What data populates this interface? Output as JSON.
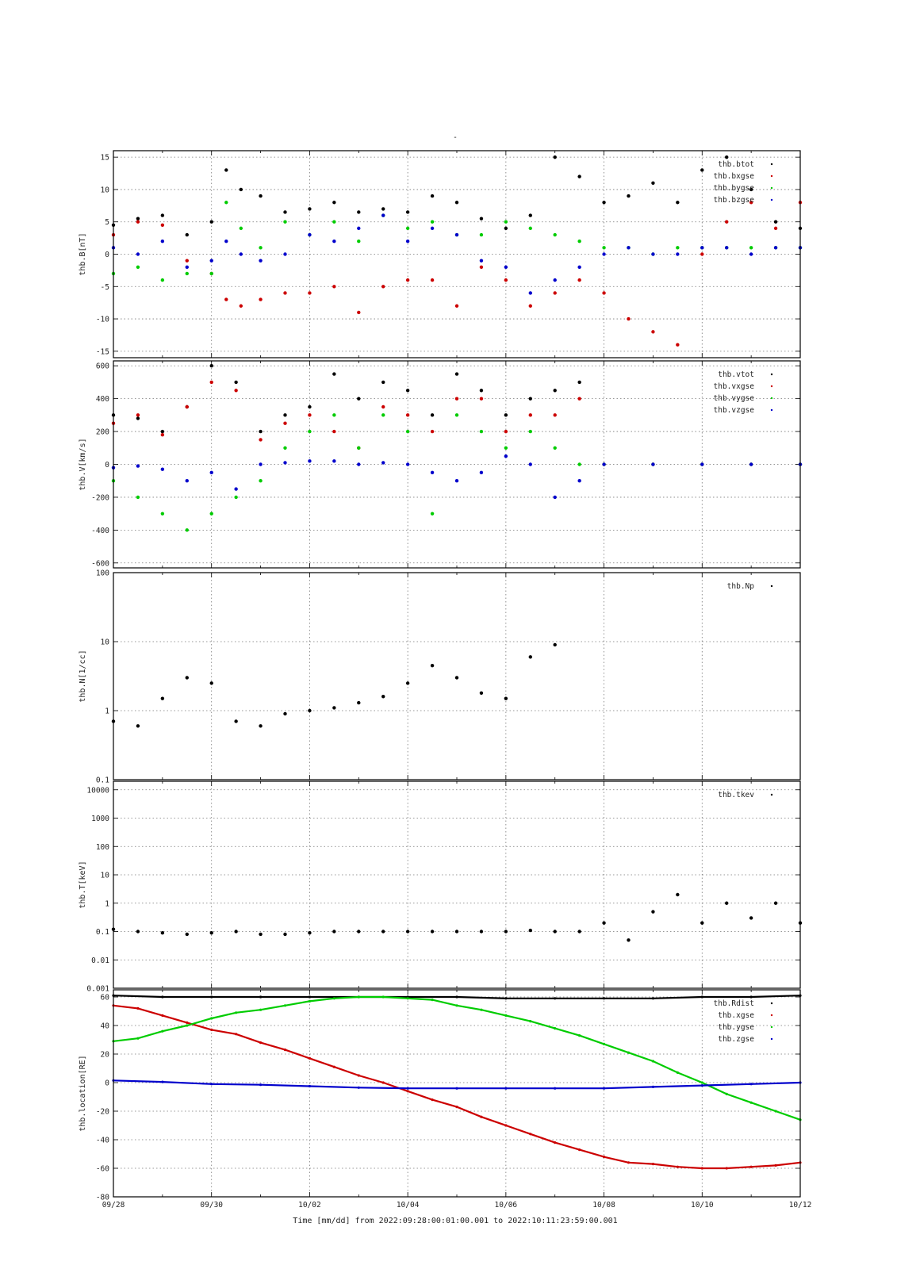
{
  "page": {
    "mark": "-"
  },
  "x_axis": {
    "ticks": [
      "09/28",
      "09/30",
      "10/02",
      "10/04",
      "10/06",
      "10/08",
      "10/10",
      "10/12"
    ],
    "range_days": [
      0,
      14
    ],
    "label": "Time [mm/dd]  from 2022:09:28:00:01:00.001  to  2022:10:11:23:59:00.001"
  },
  "colors": {
    "black": "#000000",
    "red": "#cc0000",
    "green": "#00cc00",
    "blue": "#0000cc"
  },
  "chart_data": [
    {
      "type": "scatter",
      "ylabel": "thb.B[nT]",
      "ylim": [
        -16,
        16
      ],
      "scale": "linear",
      "yticks": [
        {
          "v": 15,
          "t": "15"
        },
        {
          "v": 10,
          "t": "10"
        },
        {
          "v": 5,
          "t": "5"
        },
        {
          "v": 0,
          "t": "0"
        },
        {
          "v": -5,
          "t": "-5"
        },
        {
          "v": -10,
          "t": "-10"
        },
        {
          "v": -15,
          "t": "-15"
        }
      ],
      "legend": [
        "thb.btot",
        "thb.bxgse",
        "thb.bygse",
        "thb.bzgse"
      ],
      "grid": true,
      "series": [
        {
          "name": "thb.btot",
          "color": "#000000",
          "x": [
            0,
            0.5,
            1,
            1.5,
            2,
            2.3,
            2.6,
            3,
            3.5,
            4,
            4.5,
            5,
            5.5,
            6,
            6.5,
            7,
            7.5,
            8,
            8.5,
            9,
            9.5,
            10,
            10.5,
            11,
            11.5,
            12,
            12.5,
            13,
            13.5,
            14
          ],
          "y": [
            4.5,
            5.5,
            6,
            3,
            5,
            13,
            10,
            9,
            6.5,
            7,
            8,
            6.5,
            7,
            6.5,
            9,
            8,
            5.5,
            4,
            6,
            15,
            12,
            8,
            9,
            11,
            8,
            13,
            15,
            10,
            5,
            4
          ]
        },
        {
          "name": "thb.bxgse",
          "color": "#cc0000",
          "x": [
            0,
            0.5,
            1,
            1.5,
            2,
            2.3,
            2.6,
            3,
            3.5,
            4,
            4.5,
            5,
            5.5,
            6,
            6.5,
            7,
            7.5,
            8,
            8.5,
            9,
            9.5,
            10,
            10.5,
            11,
            11.5,
            12,
            12.5,
            13,
            13.5,
            14
          ],
          "y": [
            3,
            5,
            4.5,
            -1,
            -3,
            -7,
            -8,
            -7,
            -6,
            -6,
            -5,
            -9,
            -5,
            -4,
            -4,
            -8,
            -2,
            -4,
            -8,
            -6,
            -4,
            -6,
            -10,
            -12,
            -14,
            0,
            5,
            8,
            4,
            8
          ]
        },
        {
          "name": "thb.bygse",
          "color": "#00cc00",
          "x": [
            0,
            0.5,
            1,
            1.5,
            2,
            2.3,
            2.6,
            3,
            3.5,
            4,
            4.5,
            5,
            5.5,
            6,
            6.5,
            7,
            7.5,
            8,
            8.5,
            9,
            9.5,
            10,
            10.5,
            11,
            11.5,
            12,
            12.5,
            13,
            13.5,
            14
          ],
          "y": [
            -3,
            -2,
            -4,
            -3,
            -3,
            8,
            4,
            1,
            5,
            3,
            5,
            2,
            6,
            4,
            5,
            3,
            3,
            5,
            4,
            3,
            2,
            1,
            1,
            0,
            1,
            1,
            1,
            1,
            1,
            1
          ]
        },
        {
          "name": "thb.bzgse",
          "color": "#0000cc",
          "x": [
            0,
            0.5,
            1,
            1.5,
            2,
            2.3,
            2.6,
            3,
            3.5,
            4,
            4.5,
            5,
            5.5,
            6,
            6.5,
            7,
            7.5,
            8,
            8.5,
            9,
            9.5,
            10,
            10.5,
            11,
            11.5,
            12,
            12.5,
            13,
            13.5,
            14
          ],
          "y": [
            1,
            0,
            2,
            -2,
            -1,
            2,
            0,
            -1,
            0,
            3,
            2,
            4,
            6,
            2,
            4,
            3,
            -1,
            -2,
            -6,
            -4,
            -2,
            0,
            1,
            0,
            0,
            1,
            1,
            0,
            1,
            1
          ]
        }
      ]
    },
    {
      "type": "scatter",
      "ylabel": "thb.V[km/s]",
      "ylim": [
        -630,
        630
      ],
      "scale": "linear",
      "yticks": [
        {
          "v": 600,
          "t": "600"
        },
        {
          "v": 400,
          "t": "400"
        },
        {
          "v": 200,
          "t": "200"
        },
        {
          "v": 0,
          "t": "0"
        },
        {
          "v": -200,
          "t": "-200"
        },
        {
          "v": -400,
          "t": "-400"
        },
        {
          "v": -600,
          "t": "-600"
        }
      ],
      "legend": [
        "thb.vtot",
        "thb.vxgse",
        "thb.vygse",
        "thb.vzgse"
      ],
      "grid": true,
      "series": [
        {
          "name": "thb.vtot",
          "color": "#000000",
          "x": [
            0,
            0.5,
            1,
            1.5,
            2,
            2.5,
            3,
            3.5,
            4,
            4.5,
            5,
            5.5,
            6,
            6.5,
            7,
            7.5,
            8,
            8.5,
            9,
            9.5
          ],
          "y": [
            300,
            280,
            200,
            350,
            600,
            500,
            200,
            300,
            350,
            550,
            400,
            500,
            450,
            300,
            550,
            450,
            300,
            400,
            450,
            500
          ]
        },
        {
          "name": "thb.vxgse",
          "color": "#cc0000",
          "x": [
            0,
            0.5,
            1,
            1.5,
            2,
            2.5,
            3,
            3.5,
            4,
            4.5,
            5,
            5.5,
            6,
            6.5,
            7,
            7.5,
            8,
            8.5,
            9,
            9.5,
            10,
            11,
            12,
            13,
            14
          ],
          "y": [
            250,
            300,
            180,
            350,
            500,
            450,
            150,
            250,
            300,
            200,
            100,
            350,
            300,
            200,
            400,
            400,
            200,
            300,
            300,
            400,
            0,
            0,
            0,
            0,
            0
          ]
        },
        {
          "name": "thb.vygse",
          "color": "#00cc00",
          "x": [
            0,
            0.5,
            1,
            1.5,
            2,
            2.5,
            3,
            3.5,
            4,
            4.5,
            5,
            5.5,
            6,
            6.5,
            7,
            7.5,
            8,
            8.5,
            9,
            9.5,
            10,
            11,
            12,
            13,
            14
          ],
          "y": [
            -100,
            -200,
            -300,
            -400,
            -300,
            -200,
            -100,
            100,
            200,
            300,
            100,
            300,
            200,
            -300,
            300,
            200,
            100,
            200,
            100,
            0,
            0,
            0,
            0,
            0,
            0
          ]
        },
        {
          "name": "thb.vzgse",
          "color": "#0000cc",
          "x": [
            0,
            0.5,
            1,
            1.5,
            2,
            2.5,
            3,
            3.5,
            4,
            4.5,
            5,
            5.5,
            6,
            6.5,
            7,
            7.5,
            8,
            8.5,
            9,
            9.5,
            10,
            11,
            12,
            13,
            14
          ],
          "y": [
            -20,
            -10,
            -30,
            -100,
            -50,
            -150,
            0,
            10,
            20,
            20,
            0,
            10,
            0,
            -50,
            -100,
            -50,
            50,
            0,
            -200,
            -100,
            0,
            0,
            0,
            0,
            0
          ]
        }
      ]
    },
    {
      "type": "scatter",
      "ylabel": "thb.N[1/cc]",
      "ylim": [
        0.1,
        100
      ],
      "scale": "log",
      "yticks": [
        {
          "v": 100,
          "t": "100"
        },
        {
          "v": 10,
          "t": "10"
        },
        {
          "v": 1,
          "t": "1"
        },
        {
          "v": 0.1,
          "t": "0.1"
        }
      ],
      "legend": [
        "thb.Np"
      ],
      "grid": true,
      "series": [
        {
          "name": "thb.Np",
          "color": "#000000",
          "x": [
            0,
            0.5,
            1,
            1.5,
            2,
            2.5,
            3,
            3.5,
            4,
            4.5,
            5,
            5.5,
            6,
            6.5,
            7,
            7.5,
            8,
            8.5,
            9
          ],
          "y": [
            0.7,
            0.6,
            1.5,
            3,
            2.5,
            0.7,
            0.6,
            0.9,
            1.0,
            1.1,
            1.3,
            1.6,
            2.5,
            4.5,
            3,
            1.8,
            1.5,
            6,
            9
          ]
        }
      ]
    },
    {
      "type": "scatter",
      "ylabel": "thb.T[keV]",
      "ylim": [
        0.001,
        20000
      ],
      "scale": "log",
      "yticks": [
        {
          "v": 10000,
          "t": "10000"
        },
        {
          "v": 1000,
          "t": "1000"
        },
        {
          "v": 100,
          "t": "100"
        },
        {
          "v": 10,
          "t": "10"
        },
        {
          "v": 1,
          "t": "1"
        },
        {
          "v": 0.1,
          "t": "0.1"
        },
        {
          "v": 0.01,
          "t": "0.01"
        },
        {
          "v": 0.001,
          "t": "0.001"
        }
      ],
      "legend": [
        "thb.tkev"
      ],
      "grid": true,
      "series": [
        {
          "name": "thb.tkev",
          "color": "#000000",
          "x": [
            0,
            0.5,
            1,
            1.5,
            2,
            2.5,
            3,
            3.5,
            4,
            4.5,
            5,
            5.5,
            6,
            6.5,
            7,
            7.5,
            8,
            8.5,
            9,
            9.5,
            10,
            10.5,
            11,
            11.5,
            12,
            12.5,
            13,
            13.5,
            14
          ],
          "y": [
            0.12,
            0.1,
            0.09,
            0.08,
            0.09,
            0.1,
            0.08,
            0.08,
            0.09,
            0.1,
            0.1,
            0.1,
            0.1,
            0.1,
            0.1,
            0.1,
            0.1,
            0.11,
            0.1,
            0.1,
            0.2,
            0.05,
            0.5,
            2,
            0.2,
            1,
            0.3,
            1,
            0.2
          ]
        }
      ]
    },
    {
      "type": "line",
      "ylabel": "thb.location[RE]",
      "ylim": [
        -80,
        65
      ],
      "scale": "linear",
      "yticks": [
        {
          "v": 60,
          "t": "60"
        },
        {
          "v": 40,
          "t": "40"
        },
        {
          "v": 20,
          "t": "20"
        },
        {
          "v": 0,
          "t": "0"
        },
        {
          "v": -20,
          "t": "-20"
        },
        {
          "v": -40,
          "t": "-40"
        },
        {
          "v": -60,
          "t": "-60"
        },
        {
          "v": -80,
          "t": "-80"
        }
      ],
      "legend": [
        "thb.Rdist",
        "thb.xgse",
        "thb.ygse",
        "thb.zgse"
      ],
      "grid": true,
      "series": [
        {
          "name": "thb.Rdist",
          "color": "#000000",
          "x": [
            0,
            1,
            2,
            3,
            4,
            5,
            6,
            7,
            8,
            9,
            10,
            11,
            12,
            13,
            14
          ],
          "y": [
            61,
            60,
            60,
            60,
            60,
            60,
            60,
            60,
            59,
            59,
            59,
            59,
            60,
            60,
            61
          ]
        },
        {
          "name": "thb.xgse",
          "color": "#cc0000",
          "x": [
            0,
            0.5,
            1,
            1.5,
            2,
            2.5,
            3,
            3.5,
            4,
            4.5,
            5,
            5.5,
            6,
            6.5,
            7,
            7.5,
            8,
            8.5,
            9,
            9.5,
            10,
            10.5,
            11,
            11.5,
            12,
            12.5,
            13,
            13.5,
            14
          ],
          "y": [
            54,
            52,
            47,
            42,
            37,
            34,
            28,
            23,
            17,
            11,
            5,
            0,
            -6,
            -12,
            -17,
            -24,
            -30,
            -36,
            -42,
            -47,
            -52,
            -56,
            -57,
            -59,
            -60,
            -60,
            -59,
            -58,
            -56
          ]
        },
        {
          "name": "thb.ygse",
          "color": "#00cc00",
          "x": [
            0,
            0.5,
            1,
            1.5,
            2,
            2.5,
            3,
            3.5,
            4,
            4.5,
            5,
            5.5,
            6,
            6.5,
            7,
            7.5,
            8,
            8.5,
            9,
            9.5,
            10,
            10.5,
            11,
            11.5,
            12,
            12.5,
            13,
            13.5,
            14
          ],
          "y": [
            29,
            31,
            36,
            40,
            45,
            49,
            51,
            54,
            57,
            59,
            60,
            60,
            59,
            58,
            54,
            51,
            47,
            43,
            38,
            33,
            27,
            21,
            15,
            7,
            0,
            -8,
            -14,
            -20,
            -26
          ]
        },
        {
          "name": "thb.zgse",
          "color": "#0000cc",
          "x": [
            0,
            1,
            2,
            3,
            4,
            5,
            6,
            7,
            8,
            9,
            10,
            11,
            12,
            13,
            14
          ],
          "y": [
            1.5,
            0.5,
            -1,
            -1.5,
            -2.5,
            -3.5,
            -4,
            -4,
            -4,
            -4,
            -4,
            -3,
            -2,
            -1,
            0
          ]
        }
      ]
    }
  ]
}
